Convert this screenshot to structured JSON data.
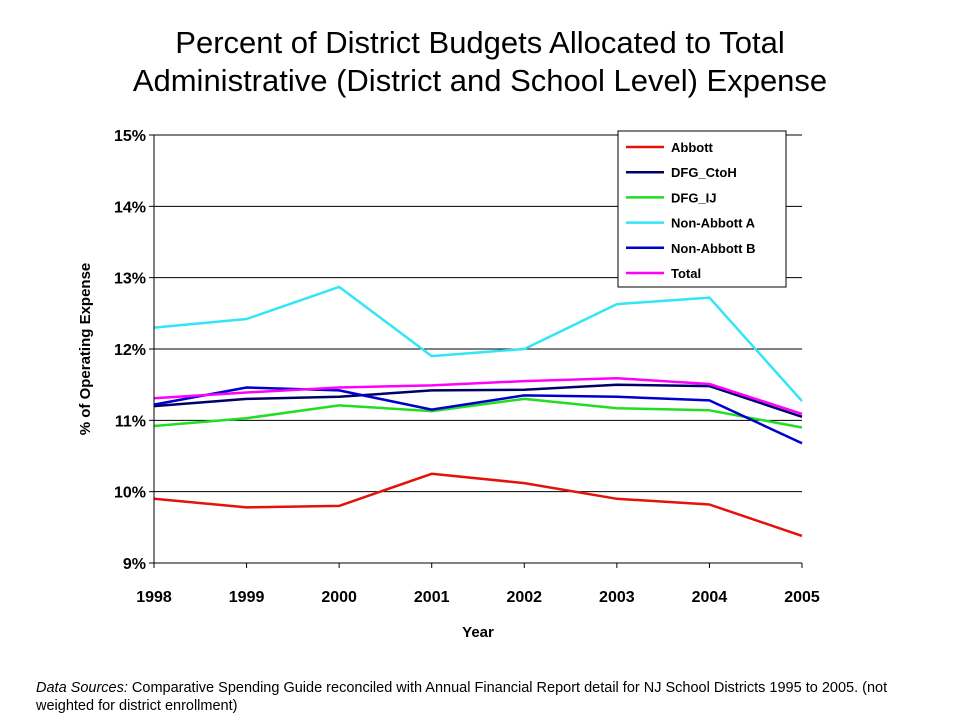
{
  "title_line1": "Percent of District Budgets Allocated to Total",
  "title_line2": "Administrative (District and School Level) Expense",
  "source_label": "Data Sources:",
  "source_text": " Comparative Spending Guide reconciled with Annual Financial Report detail for NJ School Districts 1995 to 2005. (not weighted for district enrollment)",
  "chart_data": {
    "type": "line",
    "title": "Percent of District Budgets Allocated to Total Administrative (District and School Level) Expense",
    "xlabel": "Year",
    "ylabel": "% of Operating Expense",
    "x": [
      "1998",
      "1999",
      "2000",
      "2001",
      "2002",
      "2003",
      "2004",
      "2005"
    ],
    "ylim": [
      9,
      15
    ],
    "yticks": [
      9,
      10,
      11,
      12,
      13,
      14,
      15
    ],
    "ytick_labels": [
      "9%",
      "10%",
      "11%",
      "12%",
      "13%",
      "14%",
      "15%"
    ],
    "grid": true,
    "legend_position": "top-right",
    "series": [
      {
        "name": "Abbott",
        "color": "#e3120b",
        "values": [
          9.9,
          9.78,
          9.8,
          10.25,
          10.12,
          9.9,
          9.82,
          9.38
        ]
      },
      {
        "name": "DFG_CtoH",
        "color": "#000066",
        "values": [
          11.2,
          11.3,
          11.33,
          11.42,
          11.43,
          11.5,
          11.48,
          11.05
        ]
      },
      {
        "name": "DFG_IJ",
        "color": "#22dd22",
        "values": [
          10.92,
          11.03,
          11.21,
          11.13,
          11.3,
          11.17,
          11.14,
          10.9
        ]
      },
      {
        "name": "Non-Abbott A",
        "color": "#33e5f5",
        "values": [
          12.3,
          12.42,
          12.87,
          11.9,
          12.0,
          12.63,
          12.72,
          11.27
        ]
      },
      {
        "name": "Non-Abbott B",
        "color": "#0000cc",
        "values": [
          11.22,
          11.46,
          11.42,
          11.15,
          11.35,
          11.33,
          11.28,
          10.68
        ]
      },
      {
        "name": "Total",
        "color": "#ff00ff",
        "values": [
          11.31,
          11.39,
          11.46,
          11.49,
          11.55,
          11.59,
          11.51,
          11.09
        ]
      }
    ]
  }
}
